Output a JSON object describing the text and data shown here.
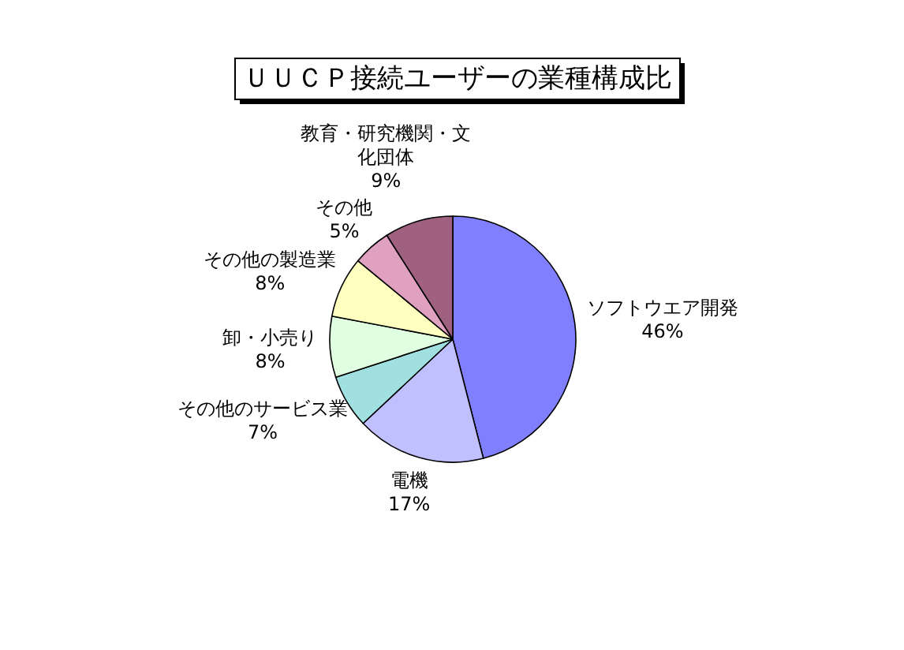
{
  "chart_data": {
    "type": "pie",
    "title": "ＵＵＣＰ接続ユーザーの業種構成比",
    "categories": [
      "ソフトウエア開発",
      "電機",
      "その他のサービス業",
      "卸・小売り",
      "その他の製造業",
      "その他",
      "教育・研究機関・文化団体"
    ],
    "values": [
      46,
      17,
      7,
      8,
      8,
      5,
      9
    ],
    "colors": [
      "#8080ff",
      "#c0c0ff",
      "#a0e0e0",
      "#e0ffe0",
      "#ffffc0",
      "#e0a0c0",
      "#a06080"
    ],
    "value_labels": [
      "46%",
      "17%",
      "7%",
      "8%",
      "8%",
      "5%",
      "9%"
    ]
  }
}
